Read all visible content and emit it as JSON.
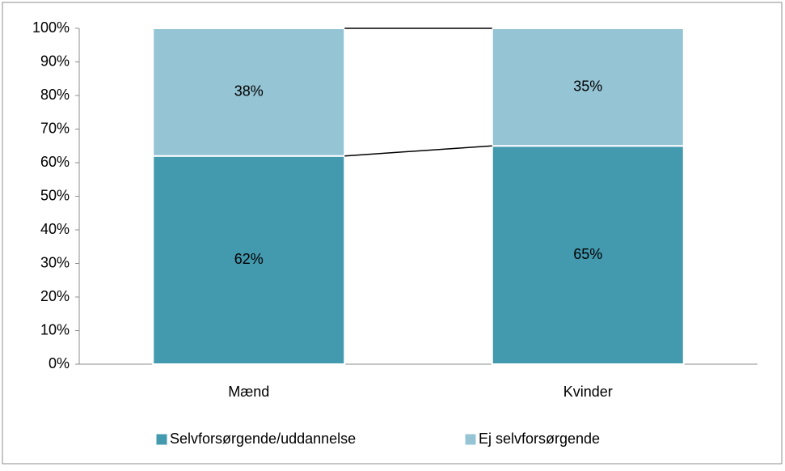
{
  "chart_data": {
    "type": "stacked_bar",
    "categories": [
      "Mænd",
      "Kvinder"
    ],
    "series": [
      {
        "name": "Selvforsørgende/uddannelse",
        "color": "#4399ae",
        "values": [
          62,
          65
        ],
        "value_labels": [
          "62%",
          "65%"
        ]
      },
      {
        "name": "Ej selvforsørgende",
        "color": "#95c4d4",
        "values": [
          38,
          35
        ],
        "value_labels": [
          "38%",
          "35%"
        ]
      }
    ],
    "ylim": [
      0,
      100
    ],
    "yticks": [
      {
        "value": 0,
        "label": "0%"
      },
      {
        "value": 10,
        "label": "10%"
      },
      {
        "value": 20,
        "label": "20%"
      },
      {
        "value": 30,
        "label": "30%"
      },
      {
        "value": 40,
        "label": "40%"
      },
      {
        "value": 50,
        "label": "50%"
      },
      {
        "value": 60,
        "label": "60%"
      },
      {
        "value": 70,
        "label": "70%"
      },
      {
        "value": 80,
        "label": "80%"
      },
      {
        "value": 90,
        "label": "90%"
      },
      {
        "value": 100,
        "label": "100%"
      }
    ],
    "legend": "bottom"
  }
}
